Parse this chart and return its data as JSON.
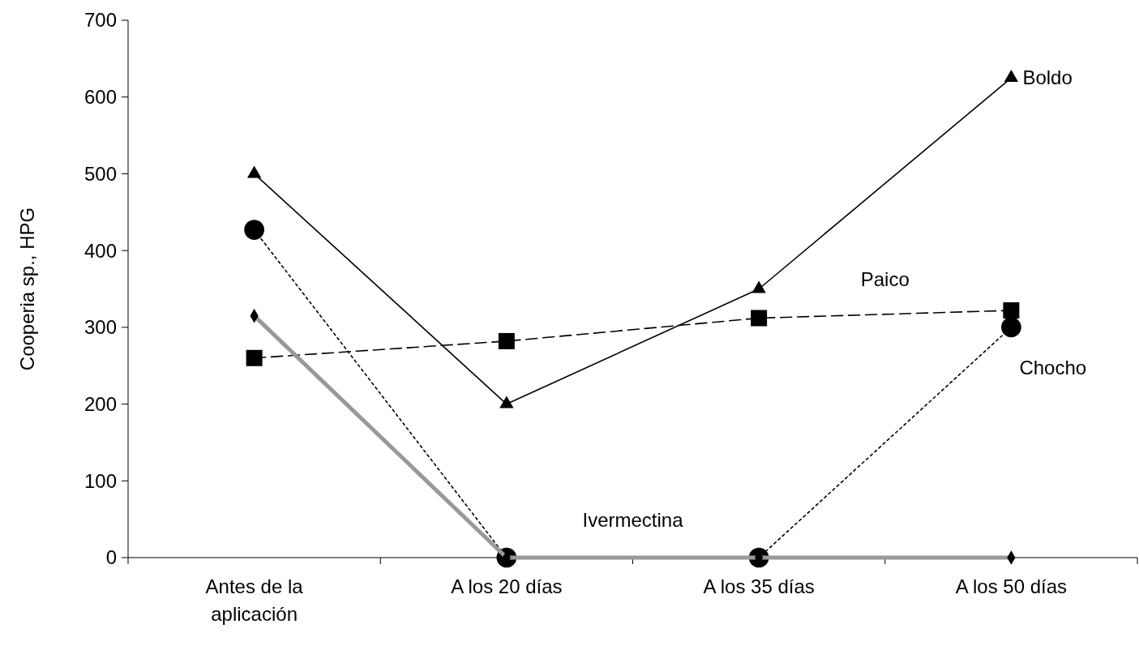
{
  "chart_data": {
    "type": "line",
    "ylabel": "Cooperia sp., HPG",
    "categories": [
      "Antes de la aplicación",
      "A los 20 días",
      "A los 35 días",
      "A los 50 días"
    ],
    "ylim": [
      0,
      700
    ],
    "yticks": [
      0,
      100,
      200,
      300,
      400,
      500,
      600,
      700
    ],
    "grid": false,
    "series": [
      {
        "name": "Boldo",
        "color": "#000000",
        "marker": "triangle",
        "line_style": "solid",
        "values": [
          500,
          200,
          350,
          625
        ]
      },
      {
        "name": "Paico",
        "color": "#000000",
        "marker": "square",
        "line_style": "dashed",
        "values": [
          260,
          282,
          312,
          322
        ]
      },
      {
        "name": "Chocho",
        "color": "#000000",
        "marker": "circle",
        "line_style": "dotted",
        "values": [
          427,
          0,
          0,
          300
        ]
      },
      {
        "name": "Ivermectina",
        "color": "#999999",
        "marker": "diamond",
        "line_style": "solid",
        "values": [
          315,
          0,
          0,
          0
        ]
      }
    ]
  }
}
